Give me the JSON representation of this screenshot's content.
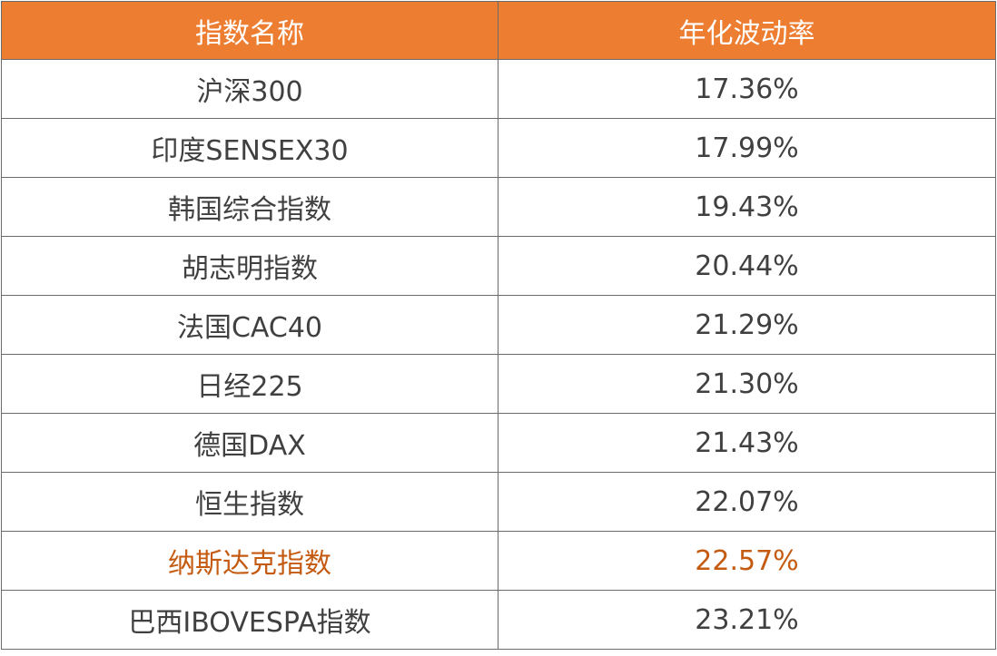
{
  "header": {
    "name_label": "指数名称",
    "volatility_label": "年化波动率",
    "background_color": "#ed7d31",
    "text_color": "#ffffff"
  },
  "highlight_color": "#c55a11",
  "rows": [
    {
      "name": "沪深300",
      "volatility": "17.36%",
      "highlight": false
    },
    {
      "name": "印度SENSEX30",
      "volatility": "17.99%",
      "highlight": false
    },
    {
      "name": "韩国综合指数",
      "volatility": "19.43%",
      "highlight": false
    },
    {
      "name": "胡志明指数",
      "volatility": "20.44%",
      "highlight": false
    },
    {
      "name": "法国CAC40",
      "volatility": "21.29%",
      "highlight": false
    },
    {
      "name": "日经225",
      "volatility": "21.30%",
      "highlight": false
    },
    {
      "name": "德国DAX",
      "volatility": "21.43%",
      "highlight": false
    },
    {
      "name": "恒生指数",
      "volatility": "22.07%",
      "highlight": false
    },
    {
      "name": "纳斯达克指数",
      "volatility": "22.57%",
      "highlight": true
    },
    {
      "name": "巴西IBOVESPA指数",
      "volatility": "23.21%",
      "highlight": false
    }
  ]
}
